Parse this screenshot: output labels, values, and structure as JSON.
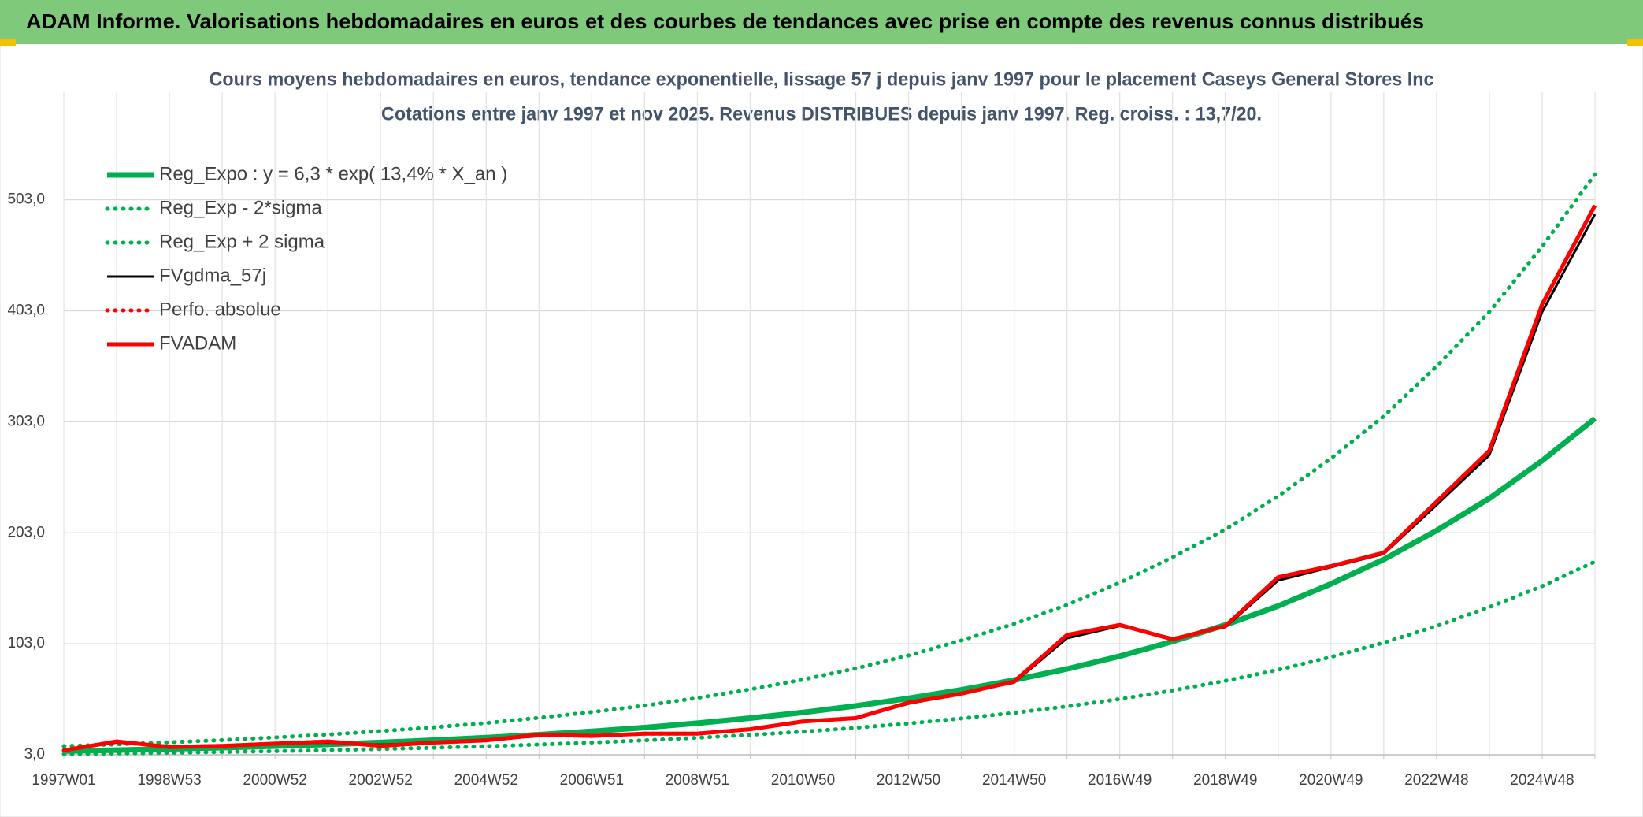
{
  "header": {
    "title": "ADAM Informe. Valorisations hebdomadaires en euros et des courbes de tendances avec prise en compte des revenus connus distribués"
  },
  "chart_data": {
    "type": "line",
    "title": "Cours moyens hebdomadaires en euros, tendance exponentielle, lissage 57 j depuis janv 1997 pour le placement Caseys General Stores Inc",
    "subtitle": "Cotations entre janv 1997 et nov 2025. Revenus DISTRIBUES depuis janv 1997. Reg. croiss. : 13,7/20.",
    "categories": [
      "1997W01",
      null,
      "1998W53",
      null,
      "2000W52",
      null,
      "2002W52",
      null,
      "2004W52",
      null,
      "2006W51",
      null,
      "2008W51",
      null,
      "2010W50",
      null,
      "2012W50",
      null,
      "2014W50",
      null,
      "2016W49",
      null,
      "2018W49",
      null,
      "2020W49",
      null,
      "2022W48",
      null,
      "2024W48",
      null
    ],
    "ylim": [
      3,
      600
    ],
    "yticks": [
      {
        "value": 3,
        "label": "3,0"
      },
      {
        "value": 103,
        "label": "103,0"
      },
      {
        "value": 203,
        "label": "203,0"
      },
      {
        "value": 303,
        "label": "303,0"
      },
      {
        "value": 403,
        "label": "403,0"
      },
      {
        "value": 503,
        "label": "503,0"
      }
    ],
    "grid": true,
    "legend": "upper left",
    "series": [
      {
        "name": "Reg_Expo : y = 6,3 * exp( 13,4% *  X_an )",
        "color": "#00b050",
        "style": "solid",
        "values": [
          6.3,
          7.2,
          8.25,
          9.4,
          10.8,
          12.3,
          14.1,
          16.1,
          18.4,
          21.1,
          24.1,
          27.5,
          31.5,
          36.0,
          41.1,
          47.0,
          53.8,
          61.5,
          70.3,
          80.3,
          91.8,
          105,
          120,
          137,
          157,
          179,
          205,
          234,
          268,
          306
        ]
      },
      {
        "name": "Reg_Exp - 2*sigma",
        "color": "#00b050",
        "style": "dotted",
        "values": [
          3.7,
          4.2,
          4.8,
          5.5,
          6.3,
          7.1,
          8.2,
          9.3,
          10.7,
          12.2,
          14.0,
          16.0,
          18.3,
          20.9,
          23.8,
          27.3,
          31.2,
          35.7,
          40.8,
          46.6,
          53.2,
          60.9,
          69.6,
          79.5,
          91.1,
          104,
          119,
          136,
          155,
          177
        ]
      },
      {
        "name": "Reg_Exp + 2 sigma",
        "color": "#00b050",
        "style": "dotted",
        "values": [
          10.8,
          12.4,
          14.2,
          16.2,
          18.6,
          21.2,
          24.3,
          27.7,
          31.6,
          36.3,
          41.5,
          47.3,
          54.2,
          61.9,
          70.7,
          80.8,
          92.5,
          106,
          121,
          138,
          158,
          181,
          206,
          236,
          270,
          308,
          353,
          402,
          461,
          526
        ]
      },
      {
        "name": "FVgdma_57j",
        "color": "#000000",
        "style": "solid",
        "values": [
          7,
          14,
          11,
          11,
          13,
          14,
          12,
          14,
          16,
          20,
          20,
          22,
          22,
          26,
          33,
          36,
          49,
          58,
          68,
          108,
          119,
          108,
          118,
          160,
          172,
          184,
          228,
          273,
          402,
          490
        ]
      },
      {
        "name": "Perfo. absolue",
        "color": "#ff0000",
        "style": "dotted",
        "values": [
          7,
          15,
          10,
          11,
          13,
          15,
          11,
          14,
          16,
          21,
          20,
          22,
          22,
          26,
          33,
          36,
          50,
          58,
          69,
          111,
          120,
          107,
          119,
          163,
          173,
          185,
          231,
          277,
          409,
          498
        ]
      },
      {
        "name": "FVADAM",
        "color": "#ff0000",
        "style": "solid",
        "values": [
          7,
          15,
          10,
          11,
          13,
          15,
          11,
          14,
          16,
          21,
          20,
          22,
          22,
          26,
          33,
          36,
          50,
          58,
          69,
          111,
          120,
          107,
          119,
          163,
          173,
          185,
          231,
          277,
          409,
          498
        ]
      }
    ]
  }
}
